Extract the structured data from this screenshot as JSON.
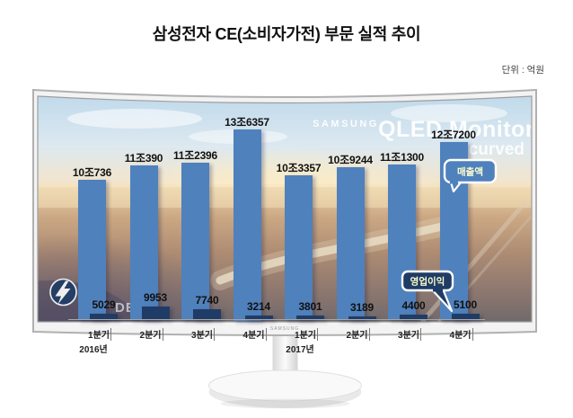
{
  "page": {
    "title": "삼성전자 CE(소비자가전) 부문 실적 추이",
    "unit_label": "단위 : 억원"
  },
  "watermarks": {
    "brand": "SAMSUNG",
    "model": "QLED Monitor",
    "variant": "curved",
    "partial": "DER",
    "bezel_brand": "SAMSUNG"
  },
  "callouts": {
    "revenue": "매출액",
    "profit": "영업이익"
  },
  "colors": {
    "revenue_bar": "#4F81BD",
    "profit_bar": "#1F3C66",
    "callout_text": "#FFFFCC"
  },
  "chart_data": {
    "type": "bar",
    "title": "삼성전자 CE(소비자가전) 부문 실적 추이",
    "unit": "억원",
    "categories": [
      "1분기",
      "2분기",
      "3분기",
      "4분기",
      "1분기",
      "2분기",
      "3분기",
      "4분기"
    ],
    "year_groups": [
      {
        "label": "2016년",
        "span": [
          0,
          3
        ]
      },
      {
        "label": "2017년",
        "span": [
          4,
          7
        ]
      }
    ],
    "series": [
      {
        "name": "매출액",
        "values": [
          100736,
          110390,
          112396,
          136357,
          103357,
          109244,
          111300,
          127200
        ],
        "labels": [
          "10조736",
          "11조390",
          "11조2396",
          "13조6357",
          "10조3357",
          "10조9244",
          "11조1300",
          "12조7200"
        ]
      },
      {
        "name": "영업이익",
        "values": [
          5029,
          9953,
          7740,
          3214,
          3801,
          3189,
          4400,
          5100
        ],
        "labels": [
          "5029",
          "9953",
          "7740",
          "3214",
          "3801",
          "3189",
          "4400",
          "5100"
        ]
      }
    ],
    "ylim": [
      0,
      140000
    ],
    "grid": false,
    "legend_position": "callouts-on-chart"
  }
}
